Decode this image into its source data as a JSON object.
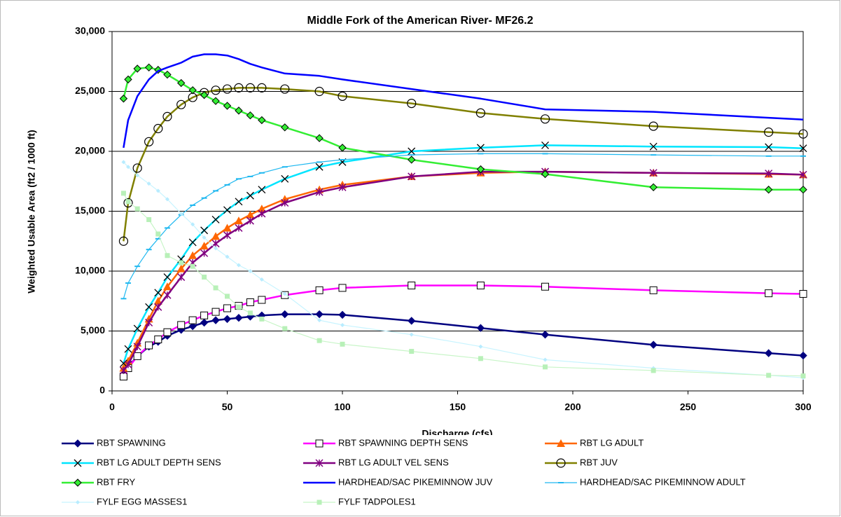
{
  "chart_data": {
    "type": "line",
    "title": "Middle Fork of the American River- MF26.2",
    "xlabel": "Discharge (cfs)",
    "ylabel": "Weighted Usable Area (ft2 / 1000 ft)",
    "x": [
      5,
      7,
      11,
      16,
      20,
      24,
      30,
      35,
      40,
      45,
      50,
      55,
      60,
      65,
      75,
      90,
      100,
      130,
      160,
      188,
      235,
      285,
      300
    ],
    "xlim": [
      0,
      300
    ],
    "xticks": [
      0,
      50,
      100,
      150,
      200,
      250,
      300
    ],
    "ylim": [
      0,
      30000
    ],
    "yticks": [
      0,
      {
        "value": 5000,
        "label": "5,000"
      },
      {
        "value": 10000,
        "label": "10,000"
      },
      {
        "value": 15000,
        "label": "15,000"
      },
      {
        "value": 20000,
        "label": "20,000"
      },
      {
        "value": 25000,
        "label": "25,000"
      },
      {
        "value": 30000,
        "label": "30,000"
      }
    ],
    "grid": true,
    "legend": "bottom",
    "series": [
      {
        "name": "RBT SPAWNING",
        "color": "#000080",
        "marker": "diamond",
        "marker_color": "#000080",
        "values": [
          1300,
          2000,
          2900,
          3700,
          4100,
          4600,
          5100,
          5400,
          5700,
          5900,
          6000,
          6100,
          6200,
          6300,
          6400,
          6400,
          6350,
          5850,
          5250,
          4700,
          3850,
          3150,
          2950
        ]
      },
      {
        "name": "RBT SPAWNING DEPTH SENS",
        "color": "#ff00ff",
        "marker": "square-open",
        "marker_color": "#000000",
        "values": [
          1200,
          1900,
          2900,
          3800,
          4300,
          4900,
          5500,
          5900,
          6300,
          6600,
          6900,
          7100,
          7400,
          7600,
          8000,
          8400,
          8600,
          8800,
          8800,
          8700,
          8400,
          8150,
          8100
        ]
      },
      {
        "name": "RBT LG ADULT",
        "color": "#ff6600",
        "marker": "triangle",
        "marker_color": "#ff6600",
        "values": [
          1900,
          2500,
          4000,
          6000,
          7500,
          8700,
          10200,
          11300,
          12100,
          12900,
          13600,
          14200,
          14700,
          15200,
          16000,
          16800,
          17200,
          17900,
          18200,
          18300,
          18200,
          18100,
          18050
        ]
      },
      {
        "name": "RBT LG ADULT DEPTH SENS",
        "color": "#00e5ff",
        "marker": "x",
        "marker_color": "#000000",
        "values": [
          2300,
          3500,
          5200,
          7000,
          8200,
          9500,
          11000,
          12400,
          13400,
          14300,
          15100,
          15800,
          16300,
          16800,
          17700,
          18700,
          19100,
          20000,
          20300,
          20500,
          20400,
          20350,
          20250
        ]
      },
      {
        "name": "RBT LG ADULT VEL SENS",
        "color": "#800080",
        "marker": "star",
        "marker_color": "#800080",
        "values": [
          1700,
          2200,
          3700,
          5700,
          7000,
          8000,
          9500,
          10700,
          11500,
          12300,
          13000,
          13600,
          14200,
          14800,
          15700,
          16600,
          17000,
          17900,
          18300,
          18300,
          18200,
          18150,
          18050
        ]
      },
      {
        "name": "RBT JUV",
        "color": "#808000",
        "marker": "circle-open",
        "marker_color": "#000000",
        "values": [
          12500,
          15700,
          18600,
          20800,
          21900,
          22900,
          23900,
          24500,
          24900,
          25100,
          25200,
          25300,
          25300,
          25300,
          25200,
          25000,
          24600,
          24000,
          23200,
          22700,
          22100,
          21600,
          21450
        ]
      },
      {
        "name": "RBT FRY",
        "color": "#33ee33",
        "marker": "diamond-edged",
        "marker_color": "#33ee33",
        "values": [
          24400,
          26000,
          26900,
          27000,
          26800,
          26400,
          25700,
          25100,
          24700,
          24200,
          23800,
          23400,
          23000,
          22600,
          22000,
          21100,
          20300,
          19300,
          18500,
          18100,
          17000,
          16800,
          16800
        ]
      },
      {
        "name": "HARDHEAD/SAC PIKEMINNOW JUV",
        "color": "#0000ff",
        "marker": "none",
        "marker_color": "#0000ff",
        "values": [
          20300,
          22600,
          24600,
          26000,
          26700,
          27000,
          27400,
          27900,
          28100,
          28100,
          28000,
          27700,
          27300,
          27000,
          26500,
          26300,
          26000,
          25200,
          24400,
          23500,
          23300,
          22800,
          22650
        ]
      },
      {
        "name": "HARDHEAD/SAC PIKEMINNOW ADULT",
        "color": "#1fb8f0",
        "marker": "dash",
        "marker_color": "#1fb8f0",
        "values": [
          7700,
          9000,
          10400,
          11800,
          12700,
          13600,
          14700,
          15500,
          16100,
          16700,
          17200,
          17700,
          17900,
          18200,
          18700,
          19100,
          19300,
          19700,
          19800,
          19800,
          19700,
          19600,
          19600
        ]
      },
      {
        "name": "FYLF EGG MASSES1",
        "color": "#c8f4ff",
        "marker": "diamond-small",
        "marker_color": "#b8ecff",
        "values": [
          19100,
          18700,
          18000,
          17300,
          16700,
          16000,
          14800,
          13900,
          12800,
          11900,
          11200,
          10500,
          10000,
          9300,
          8100,
          5900,
          5500,
          4700,
          3700,
          2600,
          1900,
          1300,
          1100
        ]
      },
      {
        "name": "FYLF TADPOLES1",
        "color": "#c8f5c8",
        "marker": "square-small",
        "marker_color": "#b8f0b8",
        "values": [
          16500,
          15800,
          15200,
          14300,
          13100,
          11300,
          10700,
          10400,
          9500,
          8600,
          7900,
          7000,
          6500,
          6000,
          5200,
          4200,
          3900,
          3300,
          2700,
          2000,
          1700,
          1300,
          1250
        ]
      }
    ]
  }
}
